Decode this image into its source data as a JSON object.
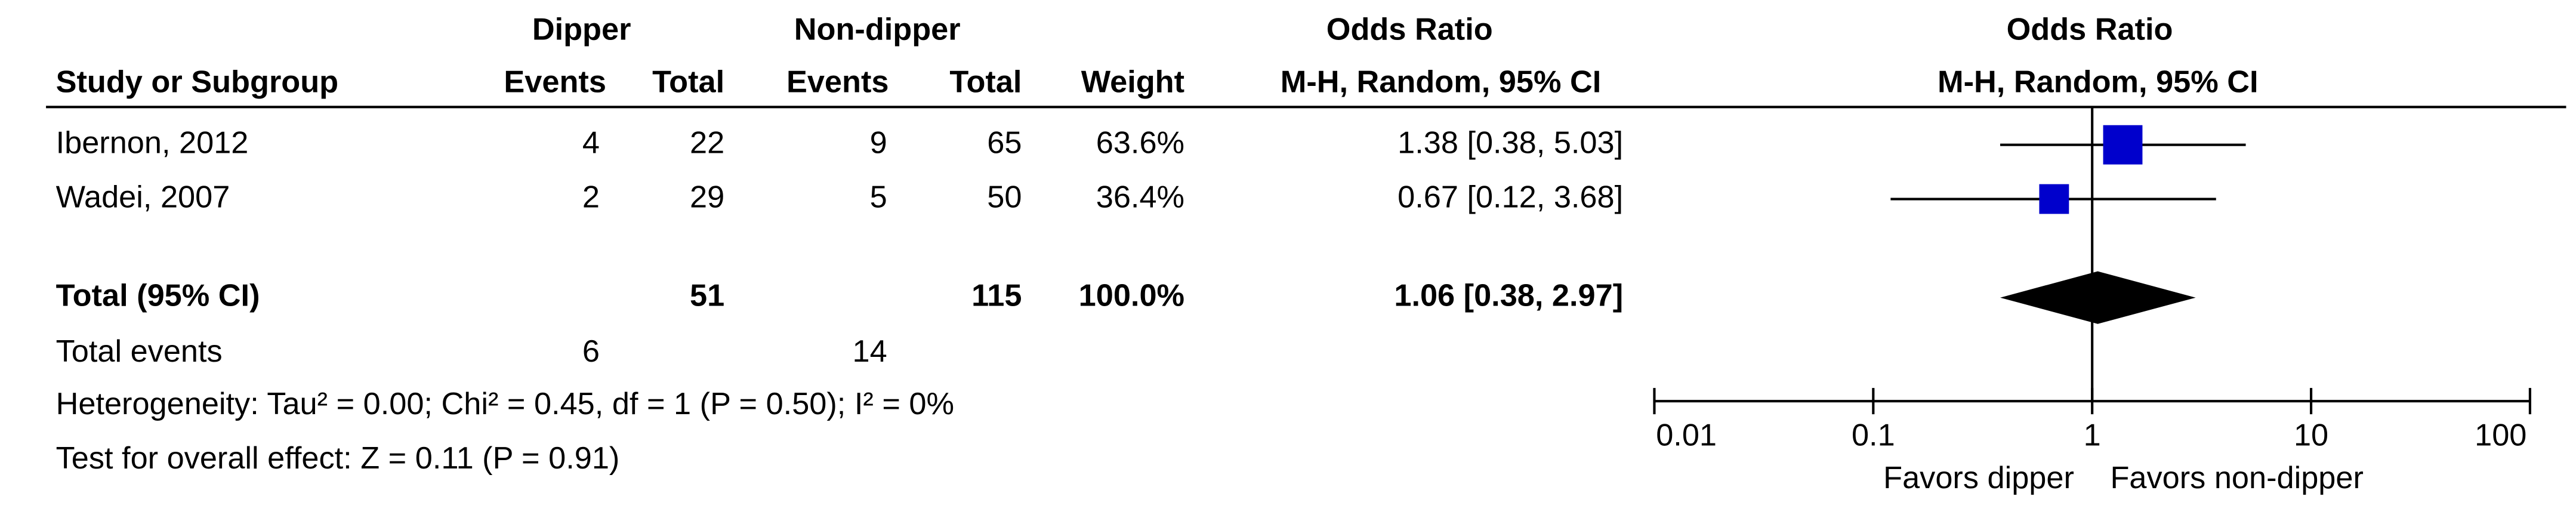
{
  "chart_data": {
    "type": "forest",
    "group_headers": [
      "Dipper",
      "Non-dipper",
      "Odds Ratio",
      "Odds Ratio"
    ],
    "columns": [
      "Study or Subgroup",
      "Events",
      "Total",
      "Events",
      "Total",
      "Weight",
      "M-H, Random, 95% CI",
      "M-H, Random, 95% CI"
    ],
    "studies": [
      {
        "name": "Ibernon, 2012",
        "events1": 4,
        "total1": 22,
        "events2": 9,
        "total2": 65,
        "weight": 63.6,
        "weight_label": "63.6%",
        "or": 1.38,
        "lower": 0.38,
        "upper": 5.03,
        "ci_label": "1.38 [0.38, 5.03]"
      },
      {
        "name": "Wadei, 2007",
        "events1": 2,
        "total1": 29,
        "events2": 5,
        "total2": 50,
        "weight": 36.4,
        "weight_label": "36.4%",
        "or": 0.67,
        "lower": 0.12,
        "upper": 3.68,
        "ci_label": "0.67 [0.12, 3.68]"
      }
    ],
    "total": {
      "name": "Total (95% CI)",
      "total1": 51,
      "total2": 115,
      "weight": 100.0,
      "weight_label": "100.0%",
      "or": 1.06,
      "lower": 0.38,
      "upper": 2.97,
      "ci_label": "1.06 [0.38, 2.97]"
    },
    "total_events": {
      "name": "Total events",
      "events1": 6,
      "events2": 14
    },
    "heterogeneity": "Heterogeneity: Tau² = 0.00; Chi² = 0.45, df = 1 (P = 0.50); I² = 0%",
    "overall_effect": "Test for overall effect: Z = 0.11 (P = 0.91)",
    "xscale": "log",
    "xlim": [
      0.01,
      100
    ],
    "xticks": [
      0.01,
      0.1,
      1,
      10,
      100
    ],
    "xlabel_left": "Favors dipper",
    "xlabel_right": "Favors non-dipper",
    "color": "#0000cc"
  }
}
